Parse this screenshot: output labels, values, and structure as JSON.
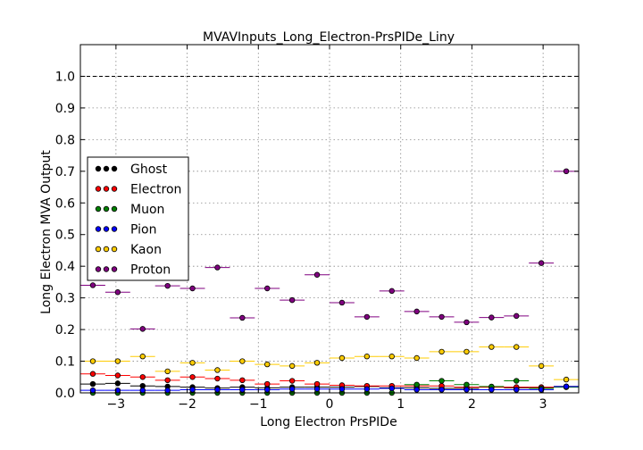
{
  "chart_data": {
    "type": "scatter",
    "title": "MVAVInputs_Long_Electron-PrsPIDe_Liny",
    "xlabel": "Long Electron PrsPIDe",
    "ylabel": "Long Electron MVA Output",
    "xlim": [
      -3.5,
      3.5
    ],
    "ylim": [
      0.0,
      1.1
    ],
    "xticks": [
      -3,
      -2,
      -1,
      0,
      1,
      2,
      3
    ],
    "xtick_labels": [
      "−3",
      "−2",
      "−1",
      "0",
      "1",
      "2",
      "3"
    ],
    "yticks": [
      0.0,
      0.1,
      0.2,
      0.3,
      0.4,
      0.5,
      0.6,
      0.7,
      0.8,
      0.9,
      1.0
    ],
    "ytick_labels": [
      "0.0",
      "0.1",
      "0.2",
      "0.3",
      "0.4",
      "0.5",
      "0.6",
      "0.7",
      "0.8",
      "0.9",
      "1.0"
    ],
    "grid": true,
    "reference_line": {
      "y": 1.0,
      "style": "dashed"
    },
    "legend_position": "center-left",
    "bin_half_width": 0.175,
    "x": [
      -3.325,
      -2.975,
      -2.625,
      -2.275,
      -1.925,
      -1.575,
      -1.225,
      -0.875,
      -0.525,
      -0.175,
      0.175,
      0.525,
      0.875,
      1.225,
      1.575,
      1.925,
      2.275,
      2.625,
      2.975,
      3.325
    ],
    "series": [
      {
        "name": "Ghost",
        "color": "#000000",
        "values": [
          0.028,
          0.03,
          0.022,
          0.02,
          0.018,
          0.015,
          0.018,
          0.016,
          0.018,
          0.018,
          0.018,
          0.02,
          0.016,
          0.016,
          0.014,
          0.014,
          0.018,
          0.016,
          0.016,
          0.02
        ]
      },
      {
        "name": "Electron",
        "color": "#ff0000",
        "values": [
          0.06,
          0.055,
          0.05,
          0.04,
          0.05,
          0.045,
          0.04,
          0.028,
          0.038,
          0.028,
          0.024,
          0.022,
          0.022,
          0.022,
          0.022,
          0.018,
          0.018,
          0.018,
          0.018,
          0.02
        ]
      },
      {
        "name": "Muon",
        "color": "#008000",
        "values": [
          0.0,
          0.0,
          0.0,
          0.0,
          0.0,
          0.0,
          0.0,
          0.0,
          0.0,
          0.0,
          0.0,
          0.0,
          0.0,
          0.026,
          0.038,
          0.026,
          0.02,
          0.038,
          0.014,
          0.018
        ]
      },
      {
        "name": "Pion",
        "color": "#0000ff",
        "values": [
          0.008,
          0.008,
          0.008,
          0.008,
          0.01,
          0.01,
          0.01,
          0.01,
          0.012,
          0.012,
          0.012,
          0.012,
          0.014,
          0.01,
          0.01,
          0.01,
          0.01,
          0.01,
          0.01,
          0.02
        ]
      },
      {
        "name": "Kaon",
        "color": "#ffcc00",
        "values": [
          0.1,
          0.1,
          0.115,
          0.068,
          0.095,
          0.072,
          0.1,
          0.09,
          0.085,
          0.095,
          0.11,
          0.115,
          0.115,
          0.11,
          0.13,
          0.13,
          0.145,
          0.145,
          0.085,
          0.042
        ]
      },
      {
        "name": "Proton",
        "color": "#800080",
        "values": [
          0.34,
          0.318,
          0.202,
          0.338,
          0.33,
          0.396,
          0.237,
          0.33,
          0.293,
          0.373,
          0.285,
          0.24,
          0.322,
          0.257,
          0.24,
          0.223,
          0.238,
          0.243,
          0.41,
          0.7
        ]
      }
    ]
  }
}
